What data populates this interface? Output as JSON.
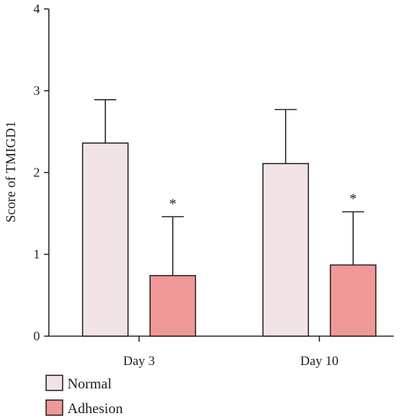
{
  "chart_data": {
    "type": "bar",
    "categories": [
      "Day 3",
      "Day 10"
    ],
    "series": [
      {
        "name": "Normal",
        "color": "#f2e3e4",
        "values": [
          2.36,
          2.11
        ],
        "errors": [
          0.53,
          0.66
        ],
        "annotations": [
          "",
          ""
        ]
      },
      {
        "name": "Adhesion",
        "color": "#f09896",
        "values": [
          0.74,
          0.87
        ],
        "errors": [
          0.72,
          0.65
        ],
        "annotations": [
          "*",
          "*"
        ]
      }
    ],
    "ylabel": "Score of TMIGD1",
    "xlabel": "",
    "ylim": [
      0,
      4
    ],
    "yticks": [
      0,
      1,
      2,
      3,
      4
    ],
    "grid": false,
    "legend_position": "bottom-left"
  }
}
